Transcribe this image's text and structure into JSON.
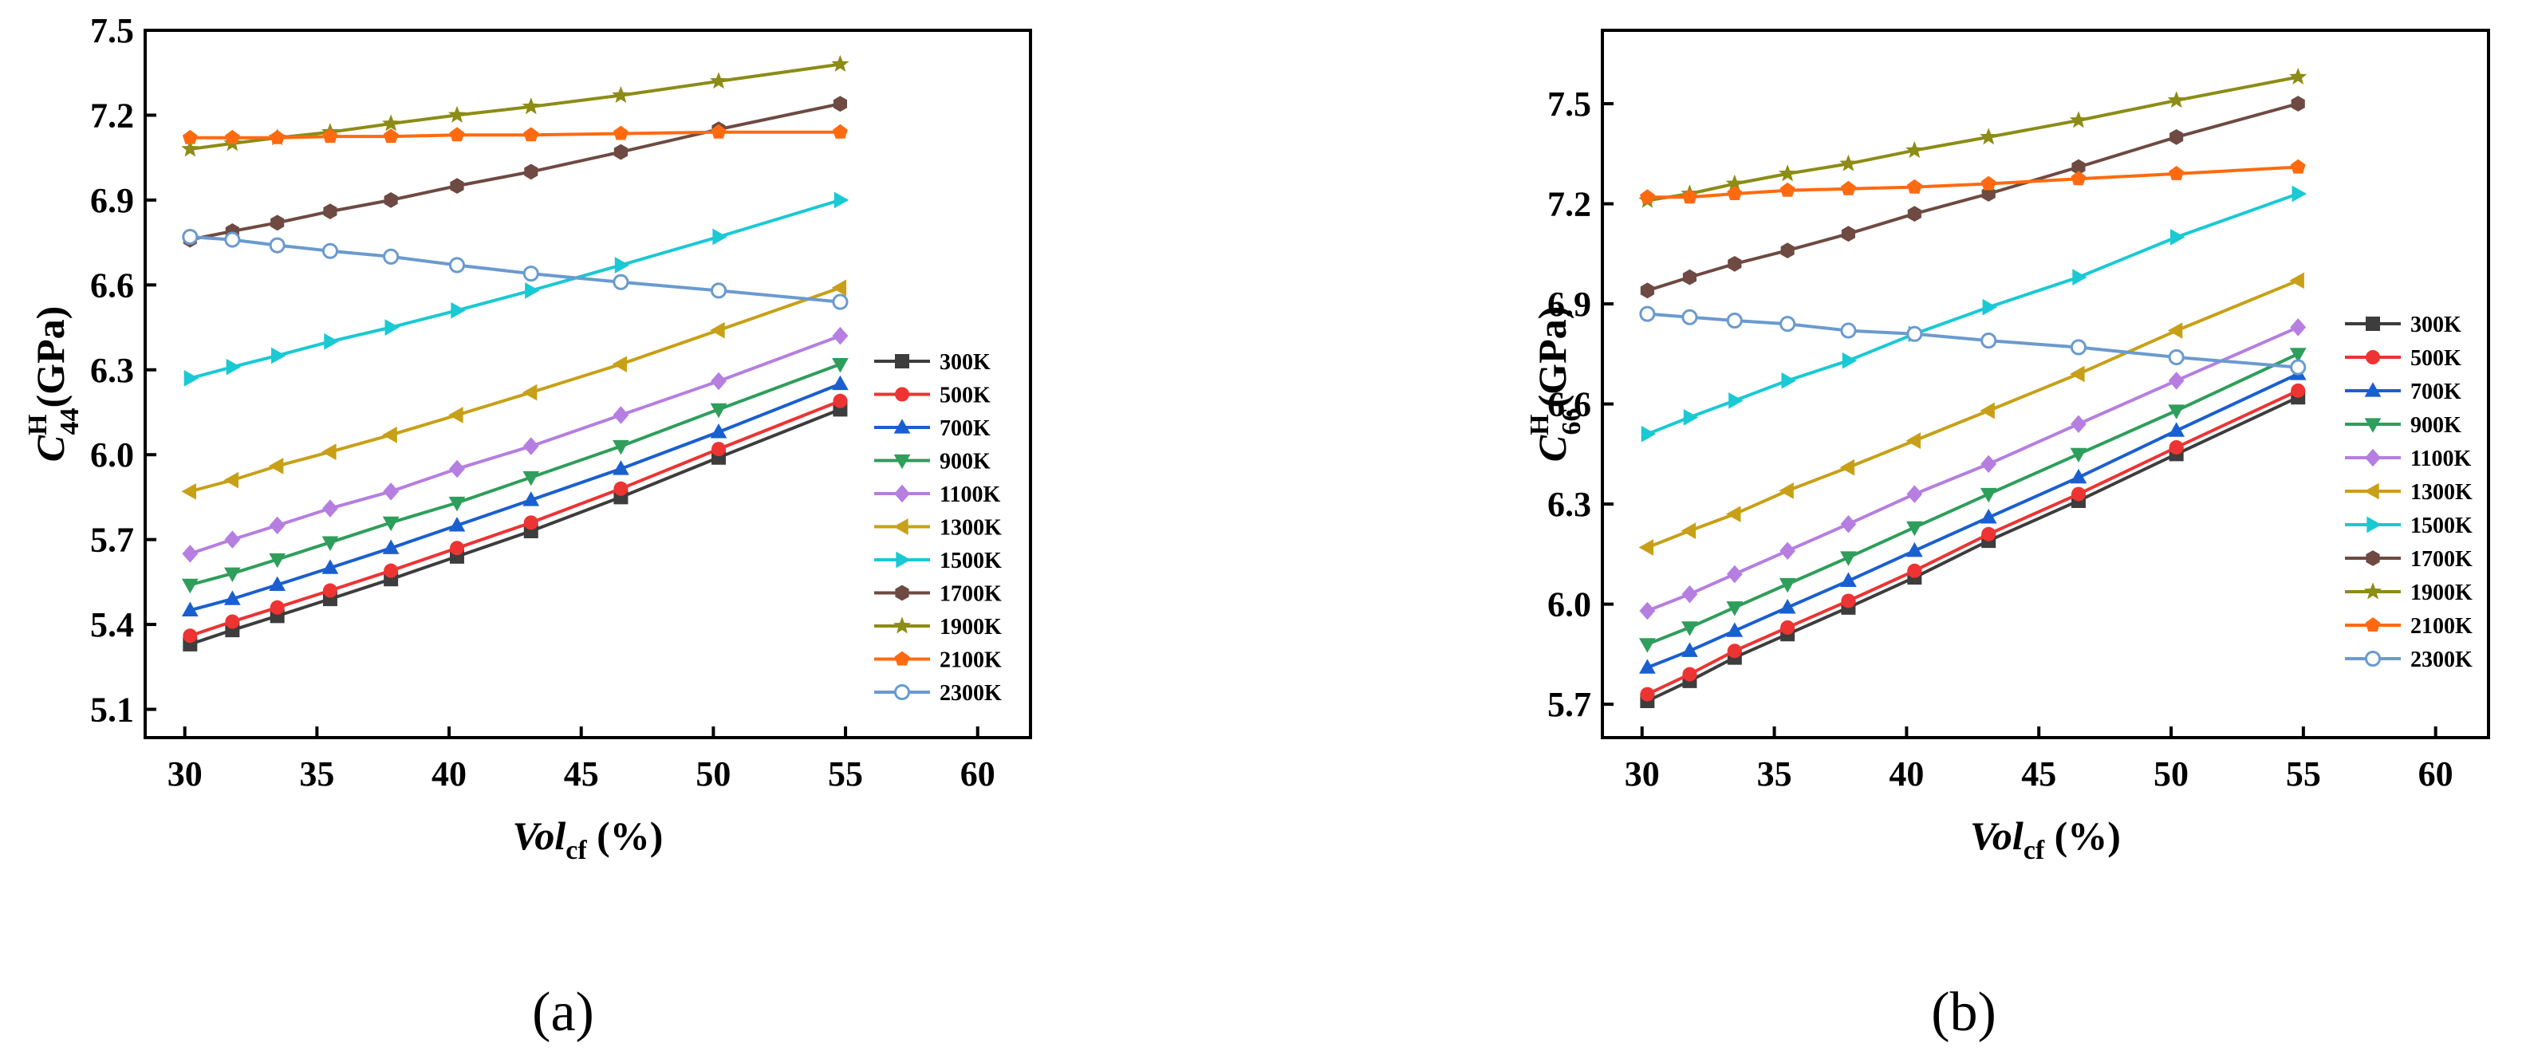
{
  "figure": {
    "panels": [
      "(a)",
      "(b)"
    ]
  },
  "chart_data": [
    {
      "type": "line",
      "panel_label": "(a)",
      "ylabel": {
        "main": "C",
        "sup": "H",
        "sub": "44",
        "tail": "(GPa)"
      },
      "xlabel": {
        "main": "Vol",
        "sub": "cf",
        "tail": " (%)"
      },
      "xlim": [
        28.5,
        62
      ],
      "ylim": [
        5.0,
        7.5
      ],
      "xticks": [
        30,
        35,
        40,
        45,
        50,
        55,
        60
      ],
      "yticks": [
        5.1,
        5.4,
        5.7,
        6.0,
        6.3,
        6.6,
        6.9,
        7.2,
        7.5
      ],
      "ytick_labels": [
        "5.1",
        "5.4",
        "5.7",
        "6.0",
        "6.3",
        "6.6",
        "6.9",
        "7.2",
        "7.5"
      ],
      "x": [
        30.2,
        31.8,
        33.5,
        35.5,
        37.8,
        40.3,
        43.1,
        46.5,
        50.2,
        54.8
      ],
      "legend_position": "right",
      "series": [
        {
          "name": "300K",
          "color": "#3d3d3d",
          "marker": "square",
          "values": [
            5.33,
            5.38,
            5.43,
            5.49,
            5.56,
            5.64,
            5.73,
            5.85,
            5.99,
            6.16
          ]
        },
        {
          "name": "500K",
          "color": "#ee3333",
          "marker": "circle",
          "values": [
            5.36,
            5.41,
            5.46,
            5.52,
            5.59,
            5.67,
            5.76,
            5.88,
            6.02,
            6.19
          ]
        },
        {
          "name": "700K",
          "color": "#1a5fd0",
          "marker": "tri-up",
          "values": [
            5.45,
            5.49,
            5.54,
            5.6,
            5.67,
            5.75,
            5.84,
            5.95,
            6.08,
            6.25
          ]
        },
        {
          "name": "900K",
          "color": "#2e9e5b",
          "marker": "tri-down",
          "values": [
            5.54,
            5.58,
            5.63,
            5.69,
            5.76,
            5.83,
            5.92,
            6.03,
            6.16,
            6.32
          ]
        },
        {
          "name": "1100K",
          "color": "#b57ee0",
          "marker": "diamond",
          "values": [
            5.65,
            5.7,
            5.75,
            5.81,
            5.87,
            5.95,
            6.03,
            6.14,
            6.26,
            6.42
          ]
        },
        {
          "name": "1300K",
          "color": "#c8a017",
          "marker": "tri-left",
          "values": [
            5.87,
            5.91,
            5.96,
            6.01,
            6.07,
            6.14,
            6.22,
            6.32,
            6.44,
            6.59
          ]
        },
        {
          "name": "1500K",
          "color": "#19c9d3",
          "marker": "tri-right",
          "values": [
            6.27,
            6.31,
            6.35,
            6.4,
            6.45,
            6.51,
            6.58,
            6.67,
            6.77,
            6.9
          ]
        },
        {
          "name": "1700K",
          "color": "#6e4a42",
          "marker": "hexagon",
          "values": [
            6.76,
            6.79,
            6.82,
            6.86,
            6.9,
            6.95,
            7.0,
            7.07,
            7.15,
            7.24
          ]
        },
        {
          "name": "1900K",
          "color": "#8c8c16",
          "marker": "star",
          "values": [
            7.08,
            7.1,
            7.12,
            7.14,
            7.17,
            7.2,
            7.23,
            7.27,
            7.32,
            7.38
          ]
        },
        {
          "name": "2100K",
          "color": "#ff6a10",
          "marker": "pentagon",
          "values": [
            7.12,
            7.12,
            7.12,
            7.125,
            7.125,
            7.13,
            7.13,
            7.135,
            7.14,
            7.14
          ]
        },
        {
          "name": "2300K",
          "color": "#6a9ad0",
          "marker": "open-circle",
          "values": [
            6.77,
            6.76,
            6.74,
            6.72,
            6.7,
            6.67,
            6.64,
            6.61,
            6.58,
            6.54
          ]
        }
      ]
    },
    {
      "type": "line",
      "panel_label": "(b)",
      "ylabel": {
        "main": "C",
        "sup": "H",
        "sub": "66",
        "tail": "(GPa)"
      },
      "xlabel": {
        "main": "Vol",
        "sub": "cf",
        "tail": " (%)"
      },
      "xlim": [
        28.5,
        62
      ],
      "ylim": [
        5.6,
        7.72
      ],
      "xticks": [
        30,
        35,
        40,
        45,
        50,
        55,
        60
      ],
      "yticks": [
        5.7,
        6.0,
        6.3,
        6.6,
        6.9,
        7.2,
        7.5
      ],
      "ytick_labels": [
        "5.7",
        "6.0",
        "6.3",
        "6.6",
        "6.9",
        "7.2",
        "7.5"
      ],
      "x": [
        30.2,
        31.8,
        33.5,
        35.5,
        37.8,
        40.3,
        43.1,
        46.5,
        50.2,
        54.8
      ],
      "legend_position": "right",
      "series": [
        {
          "name": "300K",
          "color": "#3d3d3d",
          "marker": "square",
          "values": [
            5.71,
            5.77,
            5.84,
            5.91,
            5.99,
            6.08,
            6.19,
            6.31,
            6.45,
            6.62
          ]
        },
        {
          "name": "500K",
          "color": "#ee3333",
          "marker": "circle",
          "values": [
            5.73,
            5.79,
            5.86,
            5.93,
            6.01,
            6.1,
            6.21,
            6.33,
            6.47,
            6.64
          ]
        },
        {
          "name": "700K",
          "color": "#1a5fd0",
          "marker": "tri-up",
          "values": [
            5.81,
            5.86,
            5.92,
            5.99,
            6.07,
            6.16,
            6.26,
            6.38,
            6.52,
            6.69
          ]
        },
        {
          "name": "900K",
          "color": "#2e9e5b",
          "marker": "tri-down",
          "values": [
            5.88,
            5.93,
            5.99,
            6.06,
            6.14,
            6.23,
            6.33,
            6.45,
            6.58,
            6.75
          ]
        },
        {
          "name": "1100K",
          "color": "#b57ee0",
          "marker": "diamond",
          "values": [
            5.98,
            6.03,
            6.09,
            6.16,
            6.24,
            6.33,
            6.42,
            6.54,
            6.67,
            6.83
          ]
        },
        {
          "name": "1300K",
          "color": "#c8a017",
          "marker": "tri-left",
          "values": [
            6.17,
            6.22,
            6.27,
            6.34,
            6.41,
            6.49,
            6.58,
            6.69,
            6.82,
            6.97
          ]
        },
        {
          "name": "1500K",
          "color": "#19c9d3",
          "marker": "tri-right",
          "values": [
            6.51,
            6.56,
            6.61,
            6.67,
            6.73,
            6.81,
            6.89,
            6.98,
            7.1,
            7.23
          ]
        },
        {
          "name": "1700K",
          "color": "#6e4a42",
          "marker": "hexagon",
          "values": [
            6.94,
            6.98,
            7.02,
            7.06,
            7.11,
            7.17,
            7.23,
            7.31,
            7.4,
            7.5
          ]
        },
        {
          "name": "1900K",
          "color": "#8c8c16",
          "marker": "star",
          "values": [
            7.21,
            7.23,
            7.26,
            7.29,
            7.32,
            7.36,
            7.4,
            7.45,
            7.51,
            7.58
          ]
        },
        {
          "name": "2100K",
          "color": "#ff6a10",
          "marker": "pentagon",
          "values": [
            7.22,
            7.22,
            7.23,
            7.24,
            7.245,
            7.25,
            7.26,
            7.275,
            7.29,
            7.31
          ]
        },
        {
          "name": "2300K",
          "color": "#6a9ad0",
          "marker": "open-circle",
          "values": [
            6.87,
            6.86,
            6.85,
            6.84,
            6.82,
            6.81,
            6.79,
            6.77,
            6.74,
            6.71
          ]
        }
      ]
    }
  ]
}
